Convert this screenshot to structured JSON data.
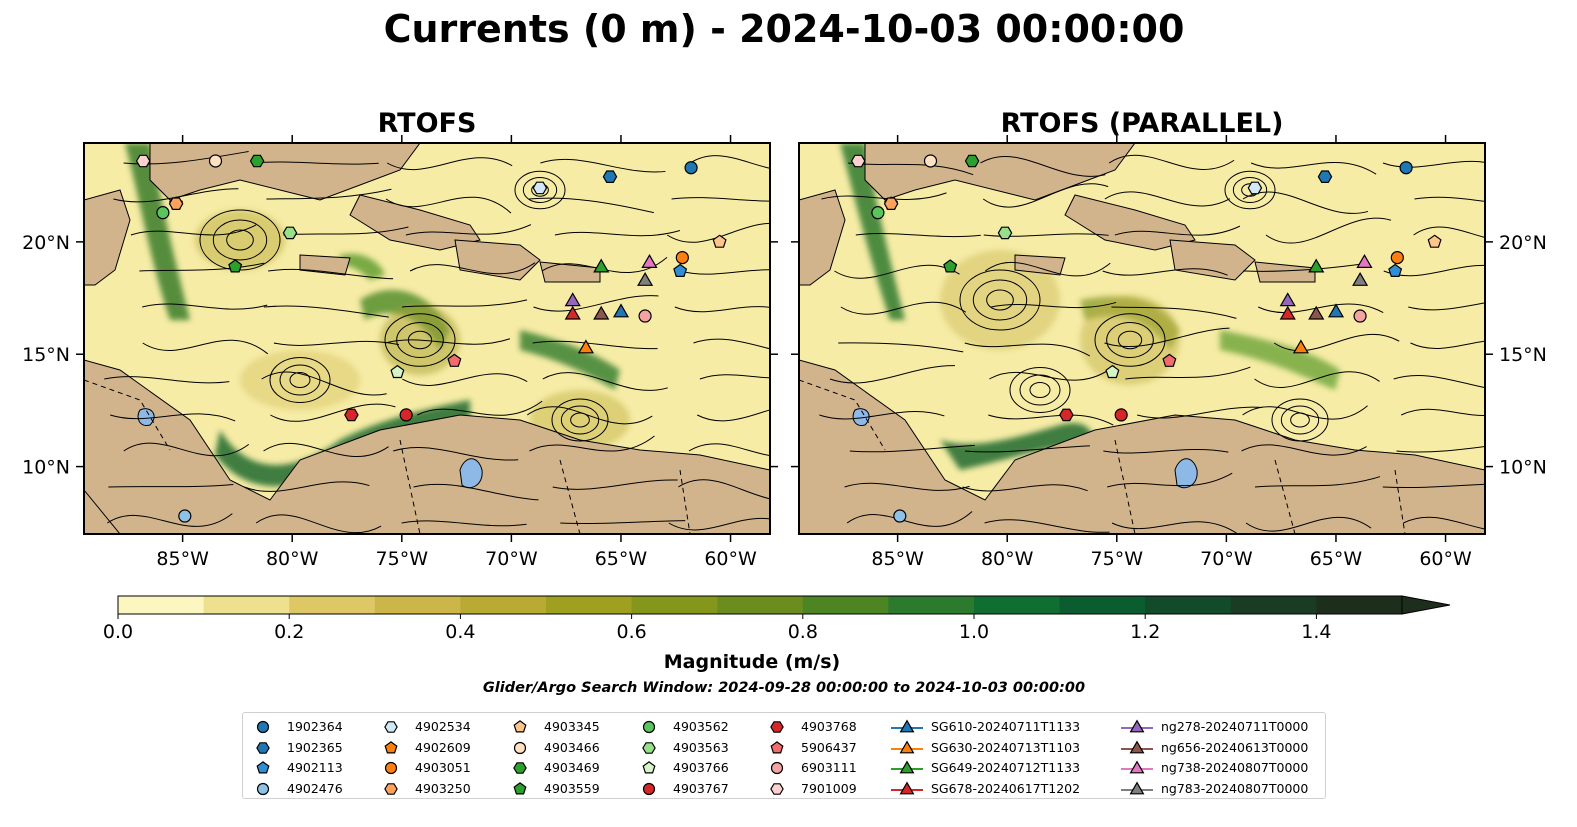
{
  "title": "Currents (0 m) - 2024-10-03 00:00:00",
  "panels": [
    {
      "title": "RTOFS",
      "variant": 0
    },
    {
      "title": "RTOFS (PARALLEL)",
      "variant": 1
    }
  ],
  "map": {
    "lon_range": [
      -89.5,
      -58.2
    ],
    "lat_range": [
      7.0,
      24.4
    ],
    "lon_ticks": [
      {
        "value": -85,
        "label": "85°W"
      },
      {
        "value": -80,
        "label": "80°W"
      },
      {
        "value": -75,
        "label": "75°W"
      },
      {
        "value": -70,
        "label": "70°W"
      },
      {
        "value": -65,
        "label": "65°W"
      },
      {
        "value": -60,
        "label": "60°W"
      }
    ],
    "lat_ticks": [
      {
        "value": 20,
        "label": "20°N"
      },
      {
        "value": 15,
        "label": "15°N"
      },
      {
        "value": 10,
        "label": "10°N"
      }
    ],
    "land_color": "#d2b48c",
    "lake_color": "#8eb8e5",
    "river_color": "#9ab5d6"
  },
  "colorbar": {
    "label": "Magnitude (m/s)",
    "min": 0.0,
    "max": 1.5,
    "extend": "max",
    "ticks": [
      {
        "value": 0.0,
        "label": "0.0"
      },
      {
        "value": 0.2,
        "label": "0.2"
      },
      {
        "value": 0.4,
        "label": "0.4"
      },
      {
        "value": 0.6,
        "label": "0.6"
      },
      {
        "value": 0.8,
        "label": "0.8"
      },
      {
        "value": 1.0,
        "label": "1.0"
      },
      {
        "value": 1.2,
        "label": "1.2"
      },
      {
        "value": 1.4,
        "label": "1.4"
      }
    ],
    "colors": [
      "#fcf6c0",
      "#ede08e",
      "#ddc865",
      "#cdb649",
      "#b8aa33",
      "#9fa020",
      "#85971b",
      "#6b8d1e",
      "#4d8424",
      "#2c7a2e",
      "#116e33",
      "#0b5c2f",
      "#134a2a",
      "#1a3b24",
      "#1e2e1c"
    ]
  },
  "search_window": "Glider/Argo Search Window: 2024-09-28 00:00:00 to 2024-10-03 00:00:00",
  "legend": [
    {
      "label": "1902364",
      "marker": "circle",
      "color": "#1f77b4"
    },
    {
      "label": "1902365",
      "marker": "hexagon",
      "color": "#1f77b4"
    },
    {
      "label": "4902113",
      "marker": "pentagon",
      "color": "#2f8fd6"
    },
    {
      "label": "4902476",
      "marker": "circle",
      "color": "#8ec1e6"
    },
    {
      "label": "4902534",
      "marker": "hexagon",
      "color": "#d3e8f7"
    },
    {
      "label": "4902609",
      "marker": "pentagon",
      "color": "#ff7f0e"
    },
    {
      "label": "4903051",
      "marker": "circle",
      "color": "#ff7f0e"
    },
    {
      "label": "4903250",
      "marker": "hexagon",
      "color": "#ffa35c"
    },
    {
      "label": "4903345",
      "marker": "pentagon",
      "color": "#ffc48a"
    },
    {
      "label": "4903466",
      "marker": "circle",
      "color": "#ffe2c2"
    },
    {
      "label": "4903469",
      "marker": "hexagon",
      "color": "#2ca02c"
    },
    {
      "label": "4903559",
      "marker": "pentagon",
      "color": "#2ca02c"
    },
    {
      "label": "4903562",
      "marker": "circle",
      "color": "#5cc45c"
    },
    {
      "label": "4903563",
      "marker": "hexagon",
      "color": "#98df8a"
    },
    {
      "label": "4903766",
      "marker": "pentagon",
      "color": "#d5f5c9"
    },
    {
      "label": "4903767",
      "marker": "circle",
      "color": "#d62728"
    },
    {
      "label": "4903768",
      "marker": "hexagon",
      "color": "#d62728"
    },
    {
      "label": "5906437",
      "marker": "pentagon",
      "color": "#f06c6e"
    },
    {
      "label": "6903111",
      "marker": "circle",
      "color": "#f4a2a2"
    },
    {
      "label": "7901009",
      "marker": "hexagon",
      "color": "#fcd1cf"
    },
    {
      "label": "SG610-20240711T1133",
      "marker": "triangle",
      "color": "#1f77b4"
    },
    {
      "label": "SG630-20240713T1103",
      "marker": "triangle",
      "color": "#ff7f0e"
    },
    {
      "label": "SG649-20240712T1133",
      "marker": "triangle",
      "color": "#2ca02c"
    },
    {
      "label": "SG678-20240617T1202",
      "marker": "triangle",
      "color": "#d62728"
    },
    {
      "label": "ng278-20240711T0000",
      "marker": "triangle",
      "color": "#9467bd"
    },
    {
      "label": "ng656-20240613T0000",
      "marker": "triangle",
      "color": "#8c564b"
    },
    {
      "label": "ng738-20240807T0000",
      "marker": "triangle",
      "color": "#e377c2"
    },
    {
      "label": "ng783-20240807T0000",
      "marker": "triangle",
      "color": "#7f7f7f"
    }
  ],
  "observations": [
    {
      "id": "1902364",
      "lon": -61.8,
      "lat": 23.3
    },
    {
      "id": "1902365",
      "lon": -65.5,
      "lat": 22.9
    },
    {
      "id": "4902113",
      "lon": -62.3,
      "lat": 18.7
    },
    {
      "id": "4902476",
      "lon": -84.9,
      "lat": 7.8
    },
    {
      "id": "4902534",
      "lon": -68.7,
      "lat": 22.4
    },
    {
      "id": "4902609",
      "lon": -85.3,
      "lat": 21.7
    },
    {
      "id": "4903051",
      "lon": -62.2,
      "lat": 19.3
    },
    {
      "id": "4903250",
      "lon": -85.3,
      "lat": 21.7
    },
    {
      "id": "4903345",
      "lon": -60.5,
      "lat": 20.0
    },
    {
      "id": "4903466",
      "lon": -83.5,
      "lat": 23.6
    },
    {
      "id": "4903469",
      "lon": -81.6,
      "lat": 23.6
    },
    {
      "id": "4903559",
      "lon": -82.6,
      "lat": 18.9
    },
    {
      "id": "4903562",
      "lon": -85.9,
      "lat": 21.3
    },
    {
      "id": "4903563",
      "lon": -80.1,
      "lat": 20.4
    },
    {
      "id": "4903766",
      "lon": -75.2,
      "lat": 14.2
    },
    {
      "id": "4903767",
      "lon": -74.8,
      "lat": 12.3
    },
    {
      "id": "4903768",
      "lon": -77.3,
      "lat": 12.3
    },
    {
      "id": "5906437",
      "lon": -72.6,
      "lat": 14.7
    },
    {
      "id": "6903111",
      "lon": -63.9,
      "lat": 16.7
    },
    {
      "id": "7901009",
      "lon": -86.8,
      "lat": 23.6
    },
    {
      "id": "SG610-20240711T1133",
      "lon": -65.0,
      "lat": 16.9
    },
    {
      "id": "SG630-20240713T1103",
      "lon": -66.6,
      "lat": 15.3
    },
    {
      "id": "SG649-20240712T1133",
      "lon": -65.9,
      "lat": 18.9
    },
    {
      "id": "SG678-20240617T1202",
      "lon": -67.2,
      "lat": 16.8
    },
    {
      "id": "ng278-20240711T0000",
      "lon": -67.2,
      "lat": 17.4
    },
    {
      "id": "ng656-20240613T0000",
      "lon": -65.9,
      "lat": 16.8
    },
    {
      "id": "ng738-20240807T0000",
      "lon": -63.7,
      "lat": 19.1
    },
    {
      "id": "ng783-20240807T0000",
      "lon": -63.9,
      "lat": 18.3
    }
  ]
}
